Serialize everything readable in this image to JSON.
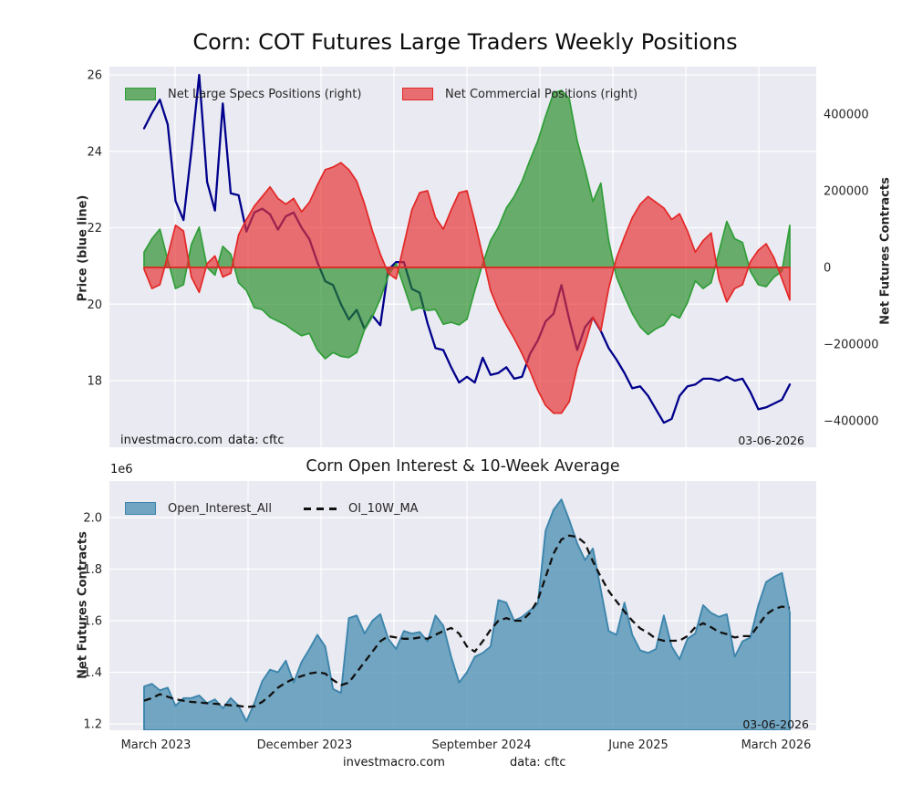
{
  "figure": {
    "title": "Corn: COT Futures Large Traders Weekly Positions",
    "background": "#ffffff",
    "plot_background": "#eaeaf2",
    "grid_color": "#ffffff"
  },
  "chart_data": [
    {
      "id": "cot_positions",
      "type": "area",
      "legend": [
        {
          "label": "Net Large Specs Positions (right)",
          "fill": "#228b22",
          "edge": "#2f9e38"
        },
        {
          "label": "Net Commercial Positions (right)",
          "fill": "#e63232",
          "edge": "#e32726"
        }
      ],
      "left_axis": {
        "label": "Price (blue line)",
        "ticks": [
          26,
          24,
          22,
          20,
          18
        ],
        "tick_labels": [
          "26",
          "24",
          "22",
          "20",
          "18"
        ],
        "range": [
          16.0,
          26.3
        ]
      },
      "right_axis": {
        "label": "Net Futures Contracts",
        "ticks": [
          400000,
          200000,
          0,
          -200000,
          -400000
        ],
        "tick_labels": [
          "400000",
          "200000",
          "0",
          "−200000",
          "−400000"
        ],
        "range": [
          -469000,
          524000
        ]
      },
      "x_axis": {
        "start": "February 2023",
        "end": "March 2026",
        "frequency": "weekly",
        "points": 83
      },
      "series": [
        {
          "name": "Price",
          "type": "line",
          "axis": "left",
          "color": "#00008b",
          "values": [
            24.6,
            25.0,
            25.35,
            24.7,
            22.7,
            22.2,
            24.0,
            26.0,
            23.2,
            22.45,
            25.25,
            22.9,
            22.85,
            21.9,
            22.4,
            22.5,
            22.35,
            21.95,
            22.3,
            22.4,
            22.0,
            21.7,
            21.1,
            20.6,
            20.5,
            20.0,
            19.6,
            19.85,
            19.35,
            19.7,
            19.45,
            20.9,
            21.1,
            21.1,
            20.4,
            20.3,
            19.5,
            18.85,
            18.8,
            18.35,
            17.95,
            18.1,
            17.95,
            18.6,
            18.15,
            18.2,
            18.35,
            18.05,
            18.1,
            18.7,
            19.05,
            19.55,
            19.75,
            20.5,
            19.6,
            18.8,
            19.4,
            19.65,
            19.3,
            18.85,
            18.55,
            18.2,
            17.8,
            17.85,
            17.6,
            17.25,
            16.9,
            17.0,
            17.6,
            17.85,
            17.9,
            18.05,
            18.05,
            18.0,
            18.1,
            18.0,
            18.05,
            17.7,
            17.25,
            17.3,
            17.4,
            17.5,
            17.9
          ]
        },
        {
          "name": "Net Large Specs Positions",
          "type": "area",
          "axis": "right",
          "fill": "#228b22",
          "fill_opacity": 0.65,
          "edge": "#2f9e38",
          "values": [
            40000,
            75000,
            100000,
            20000,
            -55000,
            -45000,
            60000,
            105000,
            0,
            -20000,
            55000,
            35000,
            -40000,
            -60000,
            -105000,
            -110000,
            -130000,
            -140000,
            -150000,
            -165000,
            -178000,
            -172000,
            -215000,
            -238000,
            -222000,
            -232000,
            -235000,
            -222000,
            -162000,
            -128000,
            -82000,
            -22000,
            10000,
            -50000,
            -112000,
            -105000,
            -112000,
            -110000,
            -148000,
            -143000,
            -150000,
            -135000,
            -60000,
            10000,
            70000,
            105000,
            155000,
            185000,
            225000,
            280000,
            330000,
            395000,
            455000,
            462000,
            440000,
            330000,
            255000,
            172000,
            220000,
            70000,
            -25000,
            -75000,
            -120000,
            -155000,
            -175000,
            -160000,
            -150000,
            -122000,
            -132000,
            -92000,
            -35000,
            -55000,
            -40000,
            40000,
            120000,
            75000,
            65000,
            -10000,
            -45000,
            -50000,
            -25000,
            -10000,
            110000
          ]
        },
        {
          "name": "Net Commercial Positions",
          "type": "area",
          "axis": "right",
          "fill": "#e63232",
          "fill_opacity": 0.68,
          "edge": "#e32726",
          "values": [
            -5000,
            -55000,
            -45000,
            30000,
            110000,
            95000,
            -25000,
            -65000,
            10000,
            30000,
            -25000,
            -15000,
            85000,
            125000,
            160000,
            185000,
            210000,
            180000,
            165000,
            180000,
            145000,
            170000,
            215000,
            255000,
            262000,
            273000,
            255000,
            225000,
            165000,
            95000,
            35000,
            -15000,
            -30000,
            60000,
            150000,
            195000,
            200000,
            130000,
            100000,
            150000,
            195000,
            200000,
            120000,
            30000,
            -60000,
            -110000,
            -150000,
            -185000,
            -225000,
            -270000,
            -320000,
            -360000,
            -380000,
            -380000,
            -350000,
            -260000,
            -200000,
            -130000,
            -165000,
            -55000,
            25000,
            80000,
            130000,
            165000,
            185000,
            170000,
            155000,
            125000,
            140000,
            95000,
            40000,
            70000,
            90000,
            -30000,
            -90000,
            -55000,
            -45000,
            15000,
            45000,
            62000,
            25000,
            -30000,
            -85000
          ]
        }
      ],
      "annotations": {
        "watermark": "investmacro.com",
        "source": "data: cftc",
        "date": "03-06-2026"
      }
    },
    {
      "id": "open_interest",
      "type": "area",
      "title": "Corn Open Interest & 10-Week Average",
      "offset_label": "1e6",
      "legend": [
        {
          "label": "Open_Interest_All",
          "fill": "#5091b4",
          "edge": "#3c85ac"
        },
        {
          "label": "OI_10W_MA",
          "color": "#111111",
          "style": "dashed"
        }
      ],
      "y_axis": {
        "label": "Net Futures Contracts",
        "scale": "1e6",
        "ticks": [
          2.0,
          1.8,
          1.6,
          1.4,
          1.2
        ],
        "tick_labels": [
          "2.0",
          "1.8",
          "1.6",
          "1.4",
          "1.2"
        ],
        "range": [
          1.175,
          2.14
        ]
      },
      "x_axis": {
        "tick_labels": [
          "March 2023",
          "December 2023",
          "September 2024",
          "June 2025",
          "March 2026"
        ]
      },
      "series": [
        {
          "name": "Open_Interest_All",
          "type": "area",
          "fill": "#5091b4",
          "fill_opacity": 0.78,
          "edge": "#3c85ac",
          "values_millions": [
            1.345,
            1.355,
            1.33,
            1.34,
            1.27,
            1.3,
            1.3,
            1.31,
            1.28,
            1.295,
            1.26,
            1.3,
            1.27,
            1.21,
            1.28,
            1.365,
            1.41,
            1.4,
            1.445,
            1.36,
            1.44,
            1.49,
            1.545,
            1.5,
            1.335,
            1.32,
            1.61,
            1.62,
            1.55,
            1.6,
            1.625,
            1.53,
            1.49,
            1.56,
            1.55,
            1.556,
            1.52,
            1.62,
            1.58,
            1.46,
            1.36,
            1.4,
            1.46,
            1.475,
            1.5,
            1.68,
            1.67,
            1.6,
            1.615,
            1.64,
            1.665,
            1.95,
            2.03,
            2.07,
            1.99,
            1.9,
            1.835,
            1.88,
            1.72,
            1.56,
            1.545,
            1.67,
            1.545,
            1.485,
            1.475,
            1.49,
            1.62,
            1.5,
            1.45,
            1.53,
            1.55,
            1.66,
            1.63,
            1.615,
            1.625,
            1.46,
            1.52,
            1.535,
            1.66,
            1.75,
            1.77,
            1.785,
            1.63
          ]
        },
        {
          "name": "OI_10W_MA",
          "type": "line",
          "style": "dashed",
          "color": "#111111",
          "values_millions": [
            1.29,
            1.3,
            1.315,
            1.305,
            1.295,
            1.29,
            1.285,
            1.283,
            1.28,
            1.278,
            1.275,
            1.272,
            1.27,
            1.265,
            1.268,
            1.285,
            1.31,
            1.34,
            1.36,
            1.375,
            1.385,
            1.395,
            1.4,
            1.395,
            1.37,
            1.35,
            1.36,
            1.4,
            1.44,
            1.48,
            1.52,
            1.54,
            1.535,
            1.53,
            1.53,
            1.535,
            1.53,
            1.545,
            1.56,
            1.572,
            1.55,
            1.5,
            1.48,
            1.52,
            1.565,
            1.6,
            1.61,
            1.6,
            1.6,
            1.63,
            1.68,
            1.77,
            1.86,
            1.915,
            1.93,
            1.925,
            1.9,
            1.83,
            1.77,
            1.715,
            1.675,
            1.635,
            1.6,
            1.57,
            1.553,
            1.53,
            1.522,
            1.522,
            1.523,
            1.54,
            1.575,
            1.59,
            1.575,
            1.556,
            1.548,
            1.535,
            1.54,
            1.54,
            1.582,
            1.624,
            1.645,
            1.655,
            1.65
          ]
        }
      ],
      "annotations": {
        "date": "03-06-2026",
        "footer_site": "investmacro.com",
        "footer_source": "data: cftc"
      }
    }
  ]
}
